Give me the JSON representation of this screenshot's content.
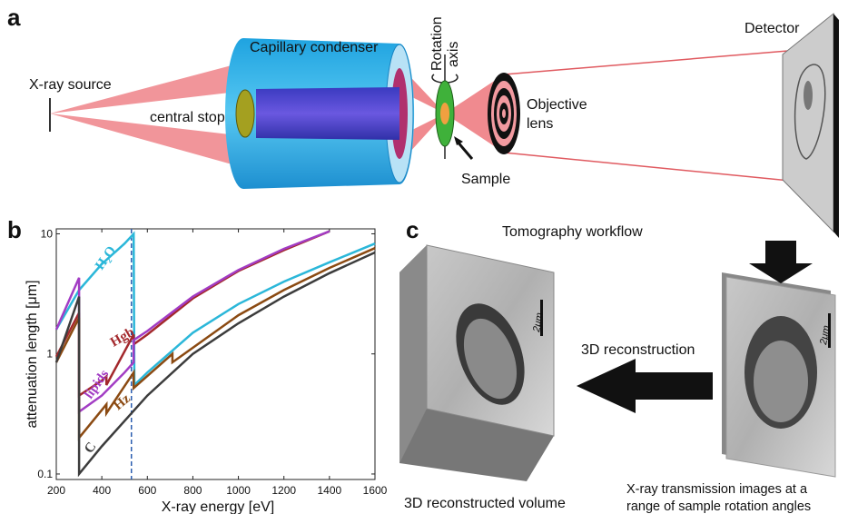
{
  "panel_a": {
    "label": "a",
    "source": "X-ray source",
    "condenser": "Capillary condenser",
    "stop": "central stop",
    "rotation": [
      "Rotation",
      "axis"
    ],
    "objective": [
      "Objective",
      "lens"
    ],
    "sample": "Sample",
    "detector": "Detector"
  },
  "chart_data": {
    "type": "line",
    "label": "b",
    "x_label": "X-ray energy [eV]",
    "y_label": "attenuation length [μm]",
    "log_y": true,
    "xlim": [
      200,
      1600
    ],
    "xticks": [
      200,
      400,
      600,
      800,
      1000,
      1200,
      1400,
      1600
    ],
    "ylim": [
      0.09,
      11
    ],
    "yticks": [
      0.1,
      1,
      10
    ],
    "marker_x": 530,
    "marker_color": "#2a5db0",
    "series": [
      {
        "name": "H₂O",
        "color": "#2bb7d9",
        "x": [
          200,
          300,
          400,
          500,
          540,
          543,
          600,
          800,
          1000,
          1200,
          1400,
          1600
        ],
        "values": [
          1.6,
          3.4,
          5.6,
          8.3,
          10,
          0.55,
          0.7,
          1.5,
          2.6,
          4,
          5.8,
          8.3
        ]
      },
      {
        "name": "Hgb",
        "color": "#a3282c",
        "x": [
          200,
          300,
          300,
          400,
          420,
          420,
          540,
          540,
          600,
          800,
          1000,
          1200,
          1400
        ],
        "values": [
          0.95,
          2.2,
          0.45,
          0.6,
          0.65,
          0.55,
          1.45,
          1.2,
          1.45,
          2.9,
          4.9,
          7.3,
          10.5
        ]
      },
      {
        "name": "lipids",
        "color": "#a23cc4",
        "x": [
          200,
          300,
          300,
          400,
          500,
          540,
          540,
          600,
          800,
          1000,
          1200,
          1400
        ],
        "values": [
          1.6,
          4.3,
          0.33,
          0.45,
          0.7,
          0.85,
          1.3,
          1.55,
          3,
          5,
          7.5,
          10.5
        ]
      },
      {
        "name": "Hz",
        "color": "#8b4a12",
        "x": [
          200,
          300,
          300,
          420,
          420,
          540,
          540,
          710,
          710,
          1000,
          1200,
          1400,
          1600
        ],
        "values": [
          0.85,
          2,
          0.2,
          0.38,
          0.32,
          0.7,
          0.52,
          1,
          0.85,
          2.1,
          3.4,
          5.2,
          7.6
        ]
      },
      {
        "name": "C",
        "color": "#3c3c3c",
        "x": [
          200,
          300,
          300,
          400,
          600,
          800,
          1000,
          1200,
          1400,
          1600
        ],
        "values": [
          0.85,
          3,
          0.1,
          0.17,
          0.45,
          1,
          1.8,
          3,
          4.7,
          7
        ]
      }
    ]
  },
  "panel_c": {
    "label": "c",
    "title": "Tomography workflow",
    "reconstruction": "3D reconstruction",
    "volume": "3D reconstructed volume",
    "projections": [
      "X-ray transmission images at a",
      "range of sample rotation angles"
    ],
    "scale_bar": "2μm"
  }
}
